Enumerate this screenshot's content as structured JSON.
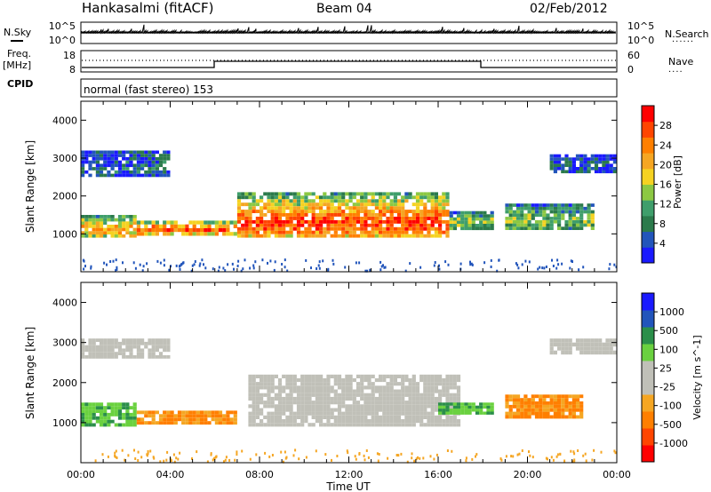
{
  "header": {
    "station": "Hankasalmi (fitACF)",
    "beam": "Beam 04",
    "date": "02/Feb/2012"
  },
  "top_panels": {
    "nsky_label": "N.Sky",
    "nsky_ticks": [
      "10^5",
      "10^0"
    ],
    "nsearch_label": "N.Search",
    "nsearch_ticks": [
      "10^5",
      "10^0"
    ],
    "nsearch_dots": "......",
    "freq_label": "Freq.",
    "freq_unit": "[MHz]",
    "freq_ticks": [
      "18",
      "8"
    ],
    "nave_label": "Nave",
    "nave_ticks": [
      "60",
      "0"
    ],
    "nave_dots": "....",
    "cpid_label": "CPID",
    "cpid_text": "normal (fast stereo) 153"
  },
  "colors": {
    "power": [
      "#1a1aff",
      "#2255bb",
      "#2b7a4b",
      "#3f9e6b",
      "#8cc843",
      "#f5d222",
      "#f5a623",
      "#ff7f00",
      "#ff4500",
      "#ff0000"
    ],
    "velocity": [
      "#ff0000",
      "#ff4500",
      "#ff7f00",
      "#f5a623",
      "#c0c0b8",
      "#c0c0b8",
      "#6ad13f",
      "#2b8f4a",
      "#2255bb",
      "#1a1aff"
    ],
    "ground_scatter": "#c0c0b8"
  },
  "chart_data": [
    {
      "type": "heatmap",
      "title": "",
      "xlabel": "",
      "ylabel": "Slant Range [km]",
      "xlim": [
        "00:00",
        "24:00"
      ],
      "ylim": [
        0,
        4500
      ],
      "x_ticks": [
        "00:00",
        "04:00",
        "08:00",
        "12:00",
        "16:00",
        "20:00",
        "00:00"
      ],
      "y_ticks": [
        "4000",
        "3000",
        "2000",
        "1000"
      ],
      "colorbar_label": "Power [dB]",
      "colorbar_ticks": [
        "28",
        "24",
        "20",
        "16",
        "12",
        "8",
        "4"
      ],
      "colorbar_range": [
        0,
        32
      ],
      "regions": [
        {
          "t0": 0.0,
          "t1": 2.5,
          "r0": 900,
          "r1": 1500,
          "level": 0.7
        },
        {
          "t0": 2.5,
          "t1": 7.0,
          "r0": 950,
          "r1": 1350,
          "level": 0.85
        },
        {
          "t0": 7.0,
          "t1": 16.5,
          "r0": 900,
          "r1": 2100,
          "level": 0.9
        },
        {
          "t0": 16.5,
          "t1": 18.5,
          "r0": 1100,
          "r1": 1600,
          "level": 0.5
        },
        {
          "t0": 19.0,
          "t1": 23.0,
          "r0": 1100,
          "r1": 1800,
          "level": 0.45
        },
        {
          "t0": 0.0,
          "t1": 4.0,
          "r0": 2500,
          "r1": 3200,
          "level": 0.2
        },
        {
          "t0": 21.0,
          "t1": 24.0,
          "r0": 2600,
          "r1": 3100,
          "level": 0.2
        }
      ]
    },
    {
      "type": "heatmap",
      "title": "",
      "xlabel": "Time UT",
      "ylabel": "Slant Range [km]",
      "xlim": [
        "00:00",
        "24:00"
      ],
      "ylim": [
        0,
        4500
      ],
      "x_ticks": [
        "00:00",
        "04:00",
        "08:00",
        "12:00",
        "16:00",
        "20:00",
        "00:00"
      ],
      "y_ticks": [
        "4000",
        "3000",
        "2000",
        "1000"
      ],
      "colorbar_label": "Velocity [m s^-1]",
      "colorbar_ticks": [
        "1000",
        "500",
        "100",
        "25",
        "-25",
        "-100",
        "-500",
        "-1000"
      ],
      "regions": [
        {
          "t0": 7.5,
          "t1": 17.0,
          "r0": 900,
          "r1": 2200,
          "kind": "ground"
        },
        {
          "t0": 0.0,
          "t1": 2.5,
          "r0": 900,
          "r1": 1500,
          "kind": "green"
        },
        {
          "t0": 2.5,
          "t1": 7.0,
          "r0": 950,
          "r1": 1300,
          "kind": "orange"
        },
        {
          "t0": 19.0,
          "t1": 22.5,
          "r0": 1100,
          "r1": 1700,
          "kind": "orange"
        },
        {
          "t0": 16.0,
          "t1": 18.5,
          "r0": 1200,
          "r1": 1500,
          "kind": "green"
        },
        {
          "t0": 0.0,
          "t1": 4.0,
          "r0": 2600,
          "r1": 3100,
          "kind": "ground"
        },
        {
          "t0": 21.0,
          "t1": 24.0,
          "r0": 2700,
          "r1": 3100,
          "kind": "ground"
        }
      ]
    }
  ]
}
